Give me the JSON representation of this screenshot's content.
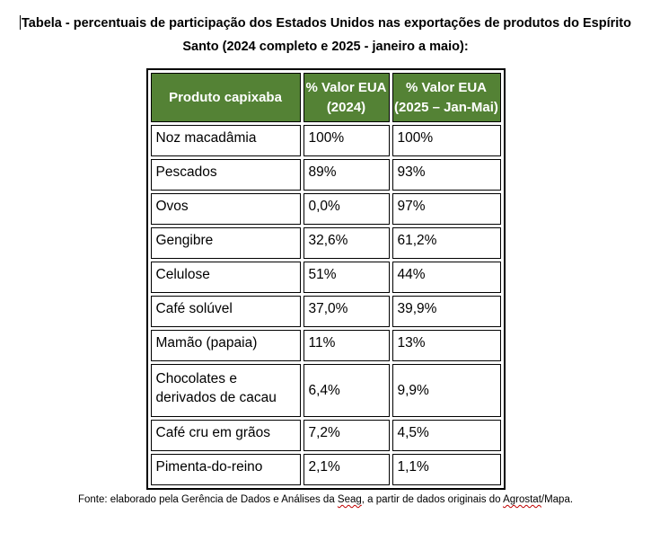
{
  "title": {
    "line1": "Tabela - percentuais de participação dos Estados Unidos nas exportações de produtos do Espírito",
    "line2": "Santo (2024 completo e 2025 - janeiro a maio):"
  },
  "table": {
    "header": {
      "col_produto": "Produto capixaba",
      "col_2024_line1": "% Valor EUA",
      "col_2024_line2": "(2024)",
      "col_2025_line1": "% Valor EUA",
      "col_2025_line2": "(2025 – Jan-Mai)"
    },
    "rows": [
      {
        "produto": "Noz macadâmia",
        "valor_2024": "100%",
        "valor_2025": "100%"
      },
      {
        "produto": "Pescados",
        "valor_2024": "89%",
        "valor_2025": "93%"
      },
      {
        "produto": "Ovos",
        "valor_2024": "0,0%",
        "valor_2025": "97%"
      },
      {
        "produto": "Gengibre",
        "valor_2024": "32,6%",
        "valor_2025": "61,2%"
      },
      {
        "produto": "Celulose",
        "valor_2024": "51%",
        "valor_2025": "44%"
      },
      {
        "produto": "Café solúvel",
        "valor_2024": "37,0%",
        "valor_2025": "39,9%"
      },
      {
        "produto": "Mamão (papaia)",
        "valor_2024": "11%",
        "valor_2025": "13%"
      },
      {
        "produto": "Chocolates e derivados de cacau",
        "valor_2024": "6,4%",
        "valor_2025": "9,9%"
      },
      {
        "produto": "Café cru em grãos",
        "valor_2024": "7,2%",
        "valor_2025": "4,5%"
      },
      {
        "produto": "Pimenta-do-reino",
        "valor_2024": "2,1%",
        "valor_2025": "1,1%"
      }
    ]
  },
  "footer": {
    "part1": "Fonte: elaborado pela Gerência de Dados e Análises da ",
    "misspelled1": "Seag",
    "part2": ", a partir de dados originais do ",
    "misspelled2": "Agrostat",
    "part3": "/Mapa."
  },
  "colors": {
    "header_green": "#548235",
    "border_black": "#000000",
    "spellcheck_red": "#C00000"
  }
}
